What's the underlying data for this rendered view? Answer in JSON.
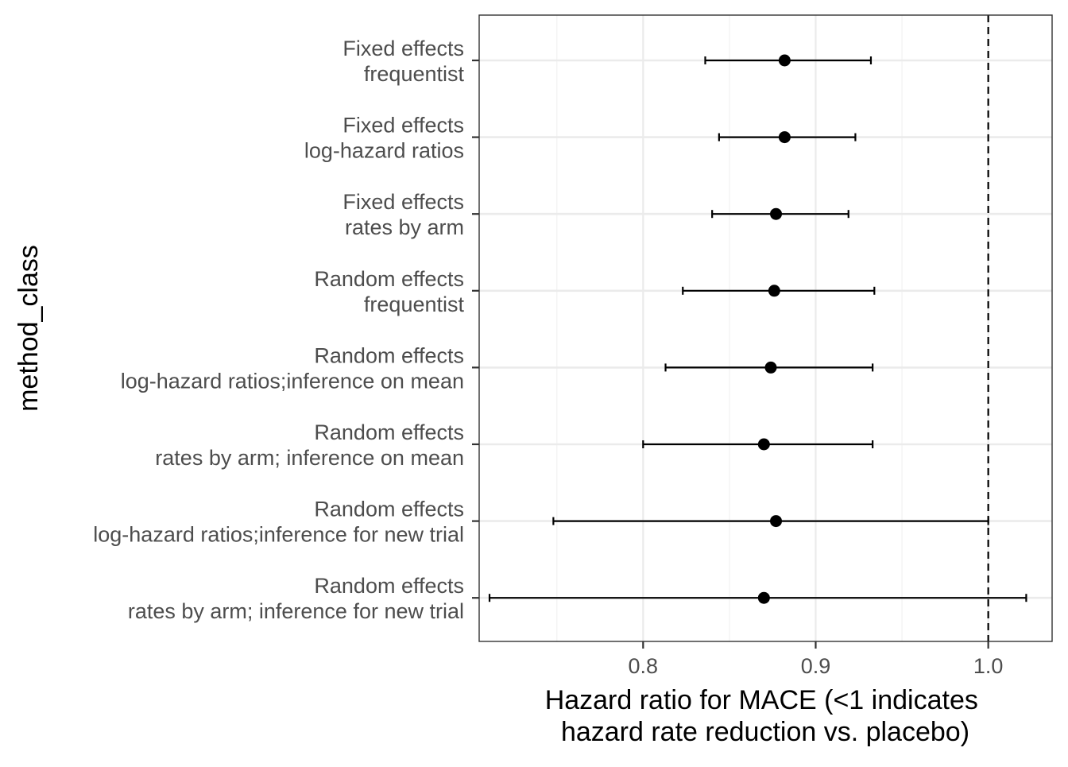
{
  "chart_data": {
    "type": "forest",
    "xlabel": [
      "Hazard ratio for MACE (<1 indicates",
      "hazard rate reduction vs. placebo)"
    ],
    "ylabel": "method_class",
    "xlim": [
      0.705,
      1.037
    ],
    "x_ticks": [
      0.8,
      0.9,
      1.0
    ],
    "x_tick_labels": [
      "0.8",
      "0.9",
      "1.0"
    ],
    "reference_line": 1.0,
    "grid": true,
    "rows": [
      {
        "label": [
          "Fixed effects",
          "frequentist"
        ],
        "estimate": 0.882,
        "lower": 0.836,
        "upper": 0.932
      },
      {
        "label": [
          "Fixed effects",
          "log-hazard ratios"
        ],
        "estimate": 0.882,
        "lower": 0.844,
        "upper": 0.923
      },
      {
        "label": [
          "Fixed effects",
          "rates by arm"
        ],
        "estimate": 0.877,
        "lower": 0.84,
        "upper": 0.919
      },
      {
        "label": [
          "Random effects",
          "frequentist"
        ],
        "estimate": 0.876,
        "lower": 0.823,
        "upper": 0.934
      },
      {
        "label": [
          "Random effects",
          "log-hazard ratios;inference on mean"
        ],
        "estimate": 0.874,
        "lower": 0.813,
        "upper": 0.933
      },
      {
        "label": [
          "Random effects",
          "rates by arm; inference on mean"
        ],
        "estimate": 0.87,
        "lower": 0.8,
        "upper": 0.933
      },
      {
        "label": [
          "Random effects",
          "log-hazard ratios;inference for new trial"
        ],
        "estimate": 0.877,
        "lower": 0.748,
        "upper": 1.0
      },
      {
        "label": [
          "Random effects",
          "rates by arm; inference for new trial"
        ],
        "estimate": 0.87,
        "lower": 0.711,
        "upper": 1.022
      }
    ]
  }
}
